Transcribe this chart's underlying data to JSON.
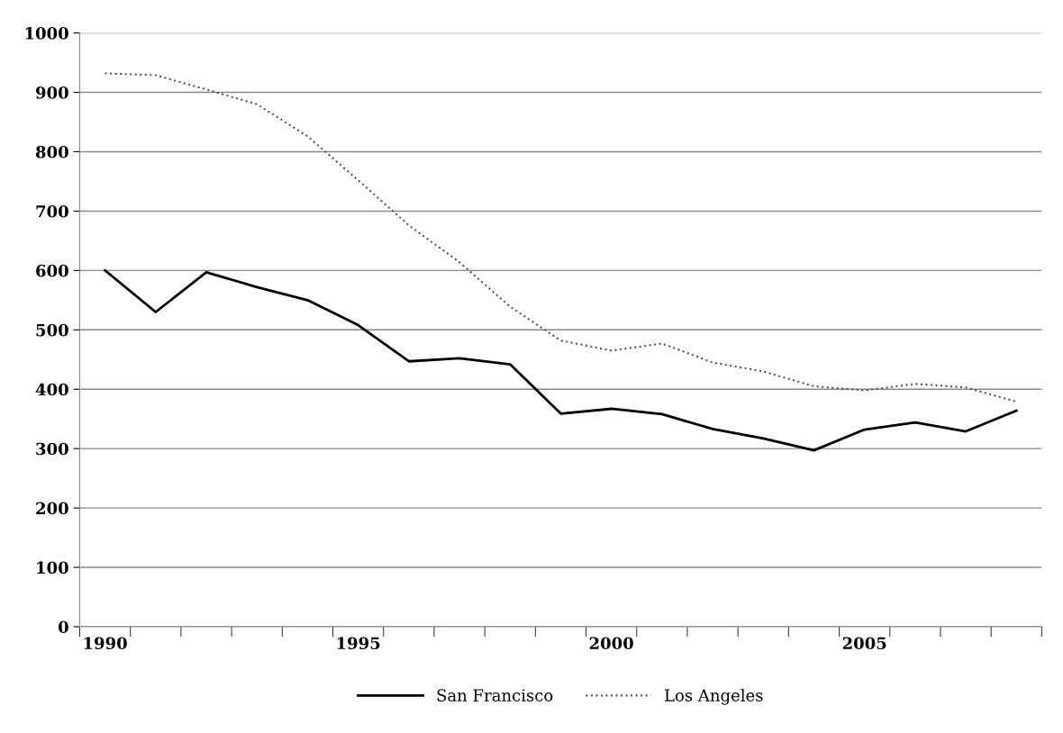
{
  "chart_data": {
    "type": "line",
    "categories": [
      "1990",
      null,
      null,
      null,
      null,
      "1995",
      null,
      null,
      null,
      null,
      "2000",
      null,
      null,
      null,
      null,
      "2005",
      null,
      null,
      null
    ],
    "series": [
      {
        "name": "San Francisco",
        "color": "#000000",
        "line_style": "solid",
        "values": [
          600,
          530,
          597,
          572,
          550,
          508,
          447,
          452,
          442,
          359,
          367,
          358,
          333,
          317,
          297,
          332,
          344,
          329,
          364
        ]
      },
      {
        "name": "Los Angeles",
        "color": "#555555",
        "line_style": "dotted",
        "values": [
          932,
          929,
          905,
          880,
          826,
          752,
          676,
          614,
          539,
          482,
          465,
          477,
          445,
          430,
          405,
          398,
          409,
          403,
          379
        ]
      }
    ],
    "ylim": [
      0,
      1000
    ],
    "yticks": [
      0,
      100,
      200,
      300,
      400,
      500,
      600,
      700,
      800,
      900,
      1000
    ],
    "grid": "y",
    "legend": "bottom",
    "marker": "none"
  }
}
